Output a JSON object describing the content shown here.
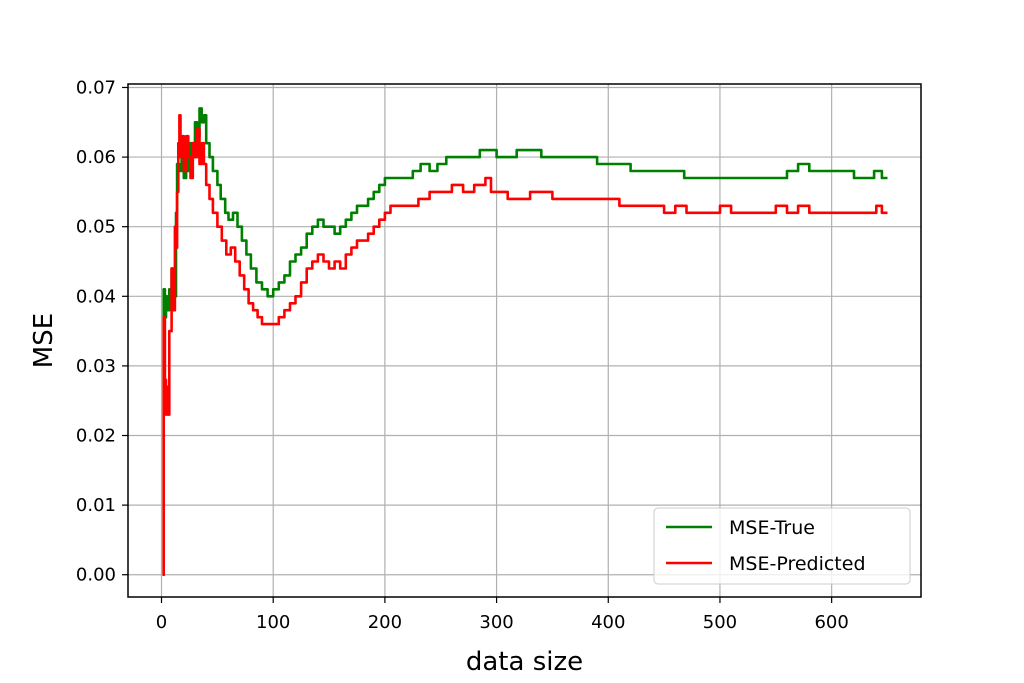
{
  "chart_data": {
    "type": "line",
    "xlabel": "data size",
    "ylabel": "MSE",
    "xlim": [
      -30,
      680
    ],
    "ylim": [
      -0.0032,
      0.0705
    ],
    "xticks": [
      0,
      100,
      200,
      300,
      400,
      500,
      600
    ],
    "xtick_labels": [
      "0",
      "100",
      "200",
      "300",
      "400",
      "500",
      "600"
    ],
    "yticks": [
      0.0,
      0.01,
      0.02,
      0.03,
      0.04,
      0.05,
      0.06,
      0.07
    ],
    "ytick_labels": [
      "0.00",
      "0.01",
      "0.02",
      "0.03",
      "0.04",
      "0.05",
      "0.06",
      "0.07"
    ],
    "grid": true,
    "legend_position": "lower-right",
    "colors": {
      "MSE-True": "#008000",
      "MSE-Predicted": "#ff0000",
      "grid": "#b0b0b0"
    },
    "series": [
      {
        "name": "MSE-True",
        "color": "#008000",
        "points": [
          [
            1,
            0.0
          ],
          [
            2,
            0.041
          ],
          [
            3,
            0.037
          ],
          [
            4,
            0.04
          ],
          [
            5,
            0.038
          ],
          [
            7,
            0.041
          ],
          [
            9,
            0.044
          ],
          [
            11,
            0.04
          ],
          [
            13,
            0.052
          ],
          [
            14,
            0.059
          ],
          [
            16,
            0.058
          ],
          [
            18,
            0.06
          ],
          [
            20,
            0.057
          ],
          [
            22,
            0.06
          ],
          [
            24,
            0.058
          ],
          [
            26,
            0.062
          ],
          [
            28,
            0.06
          ],
          [
            30,
            0.065
          ],
          [
            32,
            0.063
          ],
          [
            34,
            0.067
          ],
          [
            36,
            0.065
          ],
          [
            38,
            0.066
          ],
          [
            40,
            0.062
          ],
          [
            43,
            0.06
          ],
          [
            46,
            0.058
          ],
          [
            50,
            0.056
          ],
          [
            53,
            0.054
          ],
          [
            57,
            0.052
          ],
          [
            60,
            0.051
          ],
          [
            64,
            0.052
          ],
          [
            68,
            0.05
          ],
          [
            72,
            0.048
          ],
          [
            76,
            0.046
          ],
          [
            80,
            0.044
          ],
          [
            85,
            0.042
          ],
          [
            90,
            0.041
          ],
          [
            95,
            0.04
          ],
          [
            100,
            0.041
          ],
          [
            105,
            0.042
          ],
          [
            110,
            0.043
          ],
          [
            115,
            0.045
          ],
          [
            120,
            0.046
          ],
          [
            125,
            0.047
          ],
          [
            130,
            0.049
          ],
          [
            135,
            0.05
          ],
          [
            140,
            0.051
          ],
          [
            145,
            0.05
          ],
          [
            150,
            0.05
          ],
          [
            155,
            0.049
          ],
          [
            160,
            0.05
          ],
          [
            165,
            0.051
          ],
          [
            170,
            0.052
          ],
          [
            175,
            0.053
          ],
          [
            180,
            0.053
          ],
          [
            185,
            0.054
          ],
          [
            190,
            0.055
          ],
          [
            195,
            0.056
          ],
          [
            200,
            0.057
          ],
          [
            210,
            0.057
          ],
          [
            220,
            0.057
          ],
          [
            225,
            0.058
          ],
          [
            232,
            0.059
          ],
          [
            240,
            0.058
          ],
          [
            247,
            0.059
          ],
          [
            255,
            0.06
          ],
          [
            265,
            0.06
          ],
          [
            275,
            0.06
          ],
          [
            285,
            0.061
          ],
          [
            295,
            0.061
          ],
          [
            300,
            0.06
          ],
          [
            310,
            0.06
          ],
          [
            318,
            0.061
          ],
          [
            330,
            0.061
          ],
          [
            340,
            0.06
          ],
          [
            350,
            0.06
          ],
          [
            360,
            0.06
          ],
          [
            370,
            0.06
          ],
          [
            380,
            0.06
          ],
          [
            390,
            0.059
          ],
          [
            400,
            0.059
          ],
          [
            410,
            0.059
          ],
          [
            420,
            0.058
          ],
          [
            440,
            0.058
          ],
          [
            460,
            0.058
          ],
          [
            468,
            0.057
          ],
          [
            480,
            0.057
          ],
          [
            500,
            0.057
          ],
          [
            520,
            0.057
          ],
          [
            540,
            0.057
          ],
          [
            560,
            0.058
          ],
          [
            570,
            0.059
          ],
          [
            580,
            0.058
          ],
          [
            600,
            0.058
          ],
          [
            610,
            0.058
          ],
          [
            620,
            0.057
          ],
          [
            630,
            0.057
          ],
          [
            638,
            0.058
          ],
          [
            645,
            0.057
          ],
          [
            650,
            0.057
          ]
        ]
      },
      {
        "name": "MSE-Predicted",
        "color": "#ff0000",
        "points": [
          [
            1,
            0.0
          ],
          [
            2,
            0.037
          ],
          [
            3,
            0.028
          ],
          [
            4,
            0.023
          ],
          [
            5,
            0.027
          ],
          [
            6,
            0.023
          ],
          [
            7,
            0.035
          ],
          [
            9,
            0.044
          ],
          [
            10,
            0.038
          ],
          [
            12,
            0.05
          ],
          [
            13,
            0.047
          ],
          [
            14,
            0.055
          ],
          [
            15,
            0.062
          ],
          [
            16,
            0.066
          ],
          [
            17,
            0.06
          ],
          [
            18,
            0.063
          ],
          [
            20,
            0.058
          ],
          [
            22,
            0.063
          ],
          [
            24,
            0.06
          ],
          [
            26,
            0.057
          ],
          [
            28,
            0.062
          ],
          [
            30,
            0.06
          ],
          [
            32,
            0.064
          ],
          [
            34,
            0.059
          ],
          [
            36,
            0.062
          ],
          [
            38,
            0.059
          ],
          [
            40,
            0.056
          ],
          [
            43,
            0.054
          ],
          [
            46,
            0.052
          ],
          [
            50,
            0.05
          ],
          [
            54,
            0.048
          ],
          [
            58,
            0.046
          ],
          [
            62,
            0.047
          ],
          [
            66,
            0.045
          ],
          [
            70,
            0.043
          ],
          [
            74,
            0.041
          ],
          [
            78,
            0.039
          ],
          [
            82,
            0.038
          ],
          [
            86,
            0.037
          ],
          [
            90,
            0.036
          ],
          [
            95,
            0.036
          ],
          [
            100,
            0.036
          ],
          [
            105,
            0.037
          ],
          [
            110,
            0.038
          ],
          [
            115,
            0.039
          ],
          [
            120,
            0.04
          ],
          [
            125,
            0.042
          ],
          [
            130,
            0.044
          ],
          [
            135,
            0.045
          ],
          [
            140,
            0.046
          ],
          [
            145,
            0.045
          ],
          [
            150,
            0.044
          ],
          [
            155,
            0.045
          ],
          [
            160,
            0.044
          ],
          [
            165,
            0.046
          ],
          [
            170,
            0.047
          ],
          [
            175,
            0.048
          ],
          [
            180,
            0.048
          ],
          [
            185,
            0.049
          ],
          [
            190,
            0.05
          ],
          [
            195,
            0.051
          ],
          [
            200,
            0.052
          ],
          [
            205,
            0.053
          ],
          [
            210,
            0.053
          ],
          [
            220,
            0.053
          ],
          [
            230,
            0.054
          ],
          [
            240,
            0.055
          ],
          [
            250,
            0.055
          ],
          [
            260,
            0.056
          ],
          [
            270,
            0.055
          ],
          [
            280,
            0.056
          ],
          [
            290,
            0.057
          ],
          [
            295,
            0.055
          ],
          [
            300,
            0.055
          ],
          [
            310,
            0.054
          ],
          [
            320,
            0.054
          ],
          [
            330,
            0.055
          ],
          [
            340,
            0.055
          ],
          [
            350,
            0.054
          ],
          [
            360,
            0.054
          ],
          [
            370,
            0.054
          ],
          [
            380,
            0.054
          ],
          [
            390,
            0.054
          ],
          [
            400,
            0.054
          ],
          [
            410,
            0.053
          ],
          [
            420,
            0.053
          ],
          [
            430,
            0.053
          ],
          [
            440,
            0.053
          ],
          [
            450,
            0.052
          ],
          [
            460,
            0.053
          ],
          [
            470,
            0.052
          ],
          [
            480,
            0.052
          ],
          [
            490,
            0.052
          ],
          [
            500,
            0.053
          ],
          [
            510,
            0.052
          ],
          [
            520,
            0.052
          ],
          [
            530,
            0.052
          ],
          [
            540,
            0.052
          ],
          [
            550,
            0.053
          ],
          [
            560,
            0.052
          ],
          [
            570,
            0.053
          ],
          [
            580,
            0.052
          ],
          [
            590,
            0.052
          ],
          [
            600,
            0.052
          ],
          [
            610,
            0.052
          ],
          [
            620,
            0.052
          ],
          [
            630,
            0.052
          ],
          [
            640,
            0.053
          ],
          [
            645,
            0.052
          ],
          [
            650,
            0.052
          ]
        ]
      }
    ]
  }
}
